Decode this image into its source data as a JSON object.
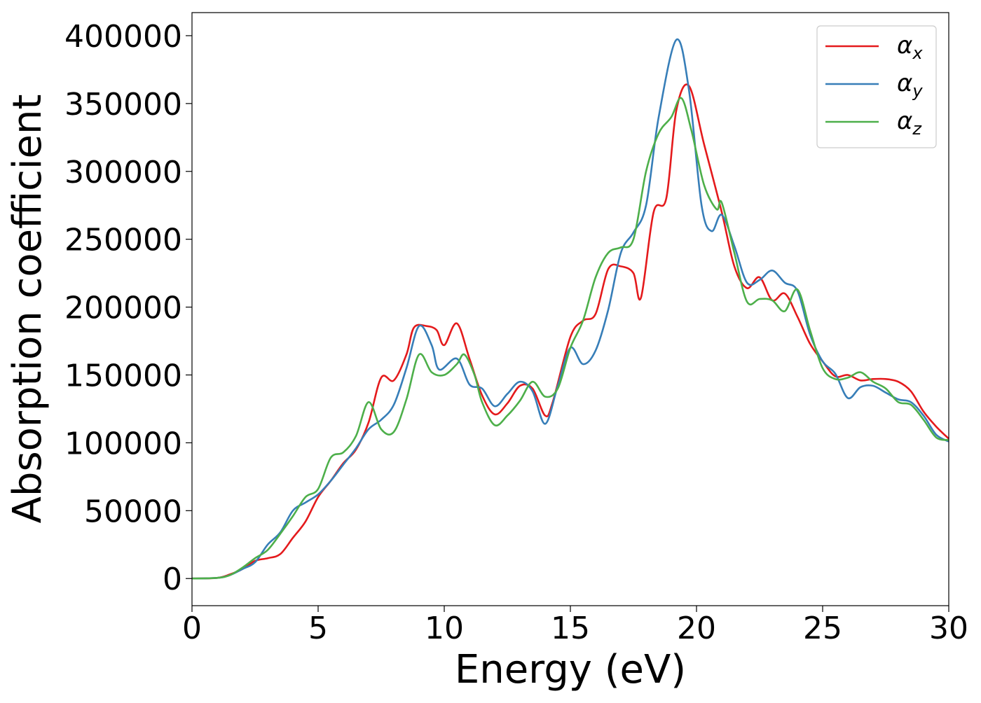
{
  "chart_data": {
    "type": "line",
    "xlabel": "Energy (eV)",
    "ylabel": "Absorption coefficient",
    "xlim": [
      0,
      30
    ],
    "ylim": [
      -20000,
      417000
    ],
    "xticks": [
      0,
      5,
      10,
      15,
      20,
      25,
      30
    ],
    "xtick_labels": [
      "0",
      "5",
      "10",
      "15",
      "20",
      "25",
      "30"
    ],
    "yticks": [
      0,
      50000,
      100000,
      150000,
      200000,
      250000,
      300000,
      350000,
      400000
    ],
    "ytick_labels": [
      "0",
      "50000",
      "100000",
      "150000",
      "200000",
      "250000",
      "300000",
      "350000",
      "400000"
    ],
    "grid": false,
    "legend_position": "top-right",
    "series": [
      {
        "name": "αx",
        "legend_base": "α",
        "legend_sub": "x",
        "color": "#e41a1c",
        "points": [
          [
            0,
            0
          ],
          [
            1,
            500
          ],
          [
            1.5,
            3000
          ],
          [
            2,
            7000
          ],
          [
            2.5,
            13000
          ],
          [
            3,
            15000
          ],
          [
            3.5,
            18000
          ],
          [
            4,
            30000
          ],
          [
            4.5,
            42000
          ],
          [
            5,
            60000
          ],
          [
            5.5,
            72000
          ],
          [
            6,
            85000
          ],
          [
            6.5,
            95000
          ],
          [
            7,
            115000
          ],
          [
            7.5,
            148000
          ],
          [
            8,
            146000
          ],
          [
            8.5,
            165000
          ],
          [
            8.8,
            185000
          ],
          [
            9.3,
            186000
          ],
          [
            9.7,
            183000
          ],
          [
            10,
            172000
          ],
          [
            10.5,
            188000
          ],
          [
            11,
            162000
          ],
          [
            11.5,
            135000
          ],
          [
            12,
            121000
          ],
          [
            12.5,
            129000
          ],
          [
            13,
            142000
          ],
          [
            13.5,
            140000
          ],
          [
            14,
            120000
          ],
          [
            14.3,
            130000
          ],
          [
            15,
            178000
          ],
          [
            15.5,
            190000
          ],
          [
            16,
            195000
          ],
          [
            16.5,
            228000
          ],
          [
            17,
            230000
          ],
          [
            17.5,
            225000
          ],
          [
            17.8,
            207000
          ],
          [
            18.3,
            270000
          ],
          [
            18.8,
            280000
          ],
          [
            19.2,
            345000
          ],
          [
            19.7,
            363000
          ],
          [
            20.3,
            320000
          ],
          [
            21,
            270000
          ],
          [
            21.5,
            230000
          ],
          [
            22,
            214000
          ],
          [
            22.5,
            222000
          ],
          [
            23,
            205000
          ],
          [
            23.5,
            210000
          ],
          [
            24,
            193000
          ],
          [
            24.5,
            173000
          ],
          [
            25,
            160000
          ],
          [
            25.5,
            149000
          ],
          [
            26,
            150000
          ],
          [
            26.5,
            146000
          ],
          [
            27,
            147000
          ],
          [
            27.5,
            147000
          ],
          [
            28,
            145000
          ],
          [
            28.5,
            138000
          ],
          [
            29,
            123000
          ],
          [
            29.5,
            112000
          ],
          [
            30,
            103000
          ]
        ]
      },
      {
        "name": "αy",
        "legend_base": "α",
        "legend_sub": "y",
        "color": "#377eb8",
        "points": [
          [
            0,
            0
          ],
          [
            1,
            500
          ],
          [
            1.5,
            2500
          ],
          [
            2,
            7000
          ],
          [
            2.5,
            12000
          ],
          [
            3,
            25000
          ],
          [
            3.5,
            34000
          ],
          [
            4,
            50000
          ],
          [
            4.5,
            56000
          ],
          [
            5,
            62000
          ],
          [
            5.5,
            72000
          ],
          [
            6,
            84000
          ],
          [
            6.5,
            96000
          ],
          [
            7,
            110000
          ],
          [
            7.5,
            117000
          ],
          [
            8,
            128000
          ],
          [
            8.5,
            155000
          ],
          [
            9,
            186000
          ],
          [
            9.5,
            172000
          ],
          [
            9.8,
            154000
          ],
          [
            10.5,
            162000
          ],
          [
            11,
            143000
          ],
          [
            11.5,
            140000
          ],
          [
            12,
            127000
          ],
          [
            12.5,
            136000
          ],
          [
            13,
            145000
          ],
          [
            13.5,
            138000
          ],
          [
            14,
            114000
          ],
          [
            14.5,
            142000
          ],
          [
            15,
            170000
          ],
          [
            15.5,
            158000
          ],
          [
            16,
            168000
          ],
          [
            16.5,
            198000
          ],
          [
            17,
            240000
          ],
          [
            17.5,
            255000
          ],
          [
            18,
            275000
          ],
          [
            18.5,
            340000
          ],
          [
            19.2,
            397000
          ],
          [
            19.7,
            360000
          ],
          [
            20.2,
            275000
          ],
          [
            20.6,
            256000
          ],
          [
            21,
            268000
          ],
          [
            21.5,
            245000
          ],
          [
            22,
            218000
          ],
          [
            22.5,
            220000
          ],
          [
            23,
            227000
          ],
          [
            23.5,
            218000
          ],
          [
            24,
            212000
          ],
          [
            24.5,
            180000
          ],
          [
            25,
            160000
          ],
          [
            25.5,
            151000
          ],
          [
            26,
            133000
          ],
          [
            26.5,
            141000
          ],
          [
            27,
            142000
          ],
          [
            27.5,
            137000
          ],
          [
            28,
            132000
          ],
          [
            28.5,
            130000
          ],
          [
            29,
            120000
          ],
          [
            29.5,
            106000
          ],
          [
            30,
            101000
          ]
        ]
      },
      {
        "name": "αz",
        "legend_base": "α",
        "legend_sub": "z",
        "color": "#4daf4a",
        "points": [
          [
            0,
            0
          ],
          [
            1,
            500
          ],
          [
            1.5,
            2500
          ],
          [
            2,
            8000
          ],
          [
            2.5,
            15000
          ],
          [
            3,
            21000
          ],
          [
            3.5,
            33000
          ],
          [
            4,
            46000
          ],
          [
            4.5,
            60000
          ],
          [
            5,
            66000
          ],
          [
            5.5,
            89000
          ],
          [
            6,
            93000
          ],
          [
            6.5,
            105000
          ],
          [
            7,
            130000
          ],
          [
            7.5,
            110000
          ],
          [
            8,
            108000
          ],
          [
            8.5,
            132000
          ],
          [
            9,
            165000
          ],
          [
            9.5,
            152000
          ],
          [
            10,
            150000
          ],
          [
            10.5,
            158000
          ],
          [
            10.8,
            165000
          ],
          [
            11.2,
            150000
          ],
          [
            11.5,
            130000
          ],
          [
            12,
            113000
          ],
          [
            12.5,
            120000
          ],
          [
            13,
            131000
          ],
          [
            13.5,
            145000
          ],
          [
            14,
            134000
          ],
          [
            14.5,
            140000
          ],
          [
            15,
            170000
          ],
          [
            15.5,
            190000
          ],
          [
            16,
            222000
          ],
          [
            16.5,
            240000
          ],
          [
            17,
            244000
          ],
          [
            17.5,
            250000
          ],
          [
            18,
            300000
          ],
          [
            18.5,
            328000
          ],
          [
            19,
            340000
          ],
          [
            19.4,
            354000
          ],
          [
            19.8,
            330000
          ],
          [
            20.3,
            290000
          ],
          [
            20.8,
            272000
          ],
          [
            21,
            277000
          ],
          [
            21.5,
            240000
          ],
          [
            22,
            204000
          ],
          [
            22.5,
            206000
          ],
          [
            23,
            205000
          ],
          [
            23.5,
            197000
          ],
          [
            24,
            213000
          ],
          [
            24.5,
            183000
          ],
          [
            25,
            155000
          ],
          [
            25.5,
            147000
          ],
          [
            26,
            148000
          ],
          [
            26.5,
            152000
          ],
          [
            27,
            145000
          ],
          [
            27.5,
            140000
          ],
          [
            28,
            130000
          ],
          [
            28.5,
            128000
          ],
          [
            29,
            117000
          ],
          [
            29.5,
            104000
          ],
          [
            30,
            102000
          ]
        ]
      }
    ]
  }
}
